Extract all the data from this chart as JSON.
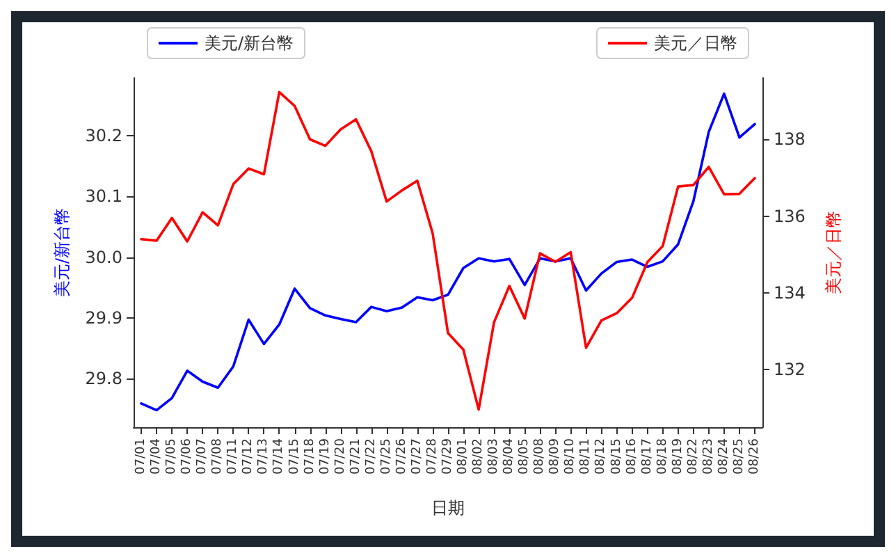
{
  "chart_data": {
    "type": "line",
    "xlabel": "日期",
    "ylabel": "美元/新台幣",
    "y2label": "美元／日幣",
    "categories": [
      "07/01",
      "07/04",
      "07/05",
      "07/06",
      "07/07",
      "07/08",
      "07/11",
      "07/12",
      "07/13",
      "07/14",
      "07/15",
      "07/18",
      "07/19",
      "07/20",
      "07/21",
      "07/22",
      "07/25",
      "07/26",
      "07/27",
      "07/28",
      "07/29",
      "08/01",
      "08/02",
      "08/03",
      "08/04",
      "08/05",
      "08/08",
      "08/09",
      "08/10",
      "08/11",
      "08/12",
      "08/15",
      "08/16",
      "08/17",
      "08/18",
      "08/19",
      "08/22",
      "08/23",
      "08/24",
      "08/25",
      "08/26"
    ],
    "series": [
      {
        "name": "美元/新台幣",
        "color": "#0000ff",
        "values": [
          29.759,
          29.748,
          29.768,
          29.813,
          29.795,
          29.785,
          29.82,
          29.897,
          29.857,
          29.889,
          29.948,
          29.916,
          29.904,
          29.898,
          29.893,
          29.918,
          29.911,
          29.917,
          29.934,
          29.929,
          29.938,
          29.982,
          29.998,
          29.993,
          29.997,
          29.954,
          29.998,
          29.993,
          29.998,
          29.945,
          29.973,
          29.992,
          29.996,
          29.984,
          29.993,
          30.021,
          30.092,
          30.206,
          30.269,
          30.197,
          30.219
        ]
      },
      {
        "name": "美元／日幣",
        "color": "#ff0000",
        "axis": "y2",
        "values": [
          135.4,
          135.36,
          135.95,
          135.34,
          136.1,
          135.76,
          136.83,
          137.24,
          137.09,
          139.23,
          138.87,
          138.0,
          137.83,
          138.26,
          138.52,
          137.69,
          136.38,
          136.67,
          136.92,
          135.55,
          132.95,
          132.52,
          130.96,
          133.23,
          134.18,
          133.33,
          135.03,
          134.81,
          135.06,
          132.57,
          133.28,
          133.47,
          133.87,
          134.8,
          135.22,
          136.77,
          136.81,
          137.28,
          136.57,
          136.58,
          136.99
        ]
      }
    ],
    "ylim": [
      29.72,
      30.295
    ],
    "yticks": [
      29.8,
      29.9,
      {
        "value": 30,
        "label": "30.0"
      },
      30.1,
      30.2
    ],
    "y2lim": [
      130.5,
      139.6
    ],
    "y2ticks": [
      132,
      134,
      136,
      138
    ],
    "legend": "top",
    "grid": false,
    "marker": "none",
    "line_style": "solid"
  }
}
